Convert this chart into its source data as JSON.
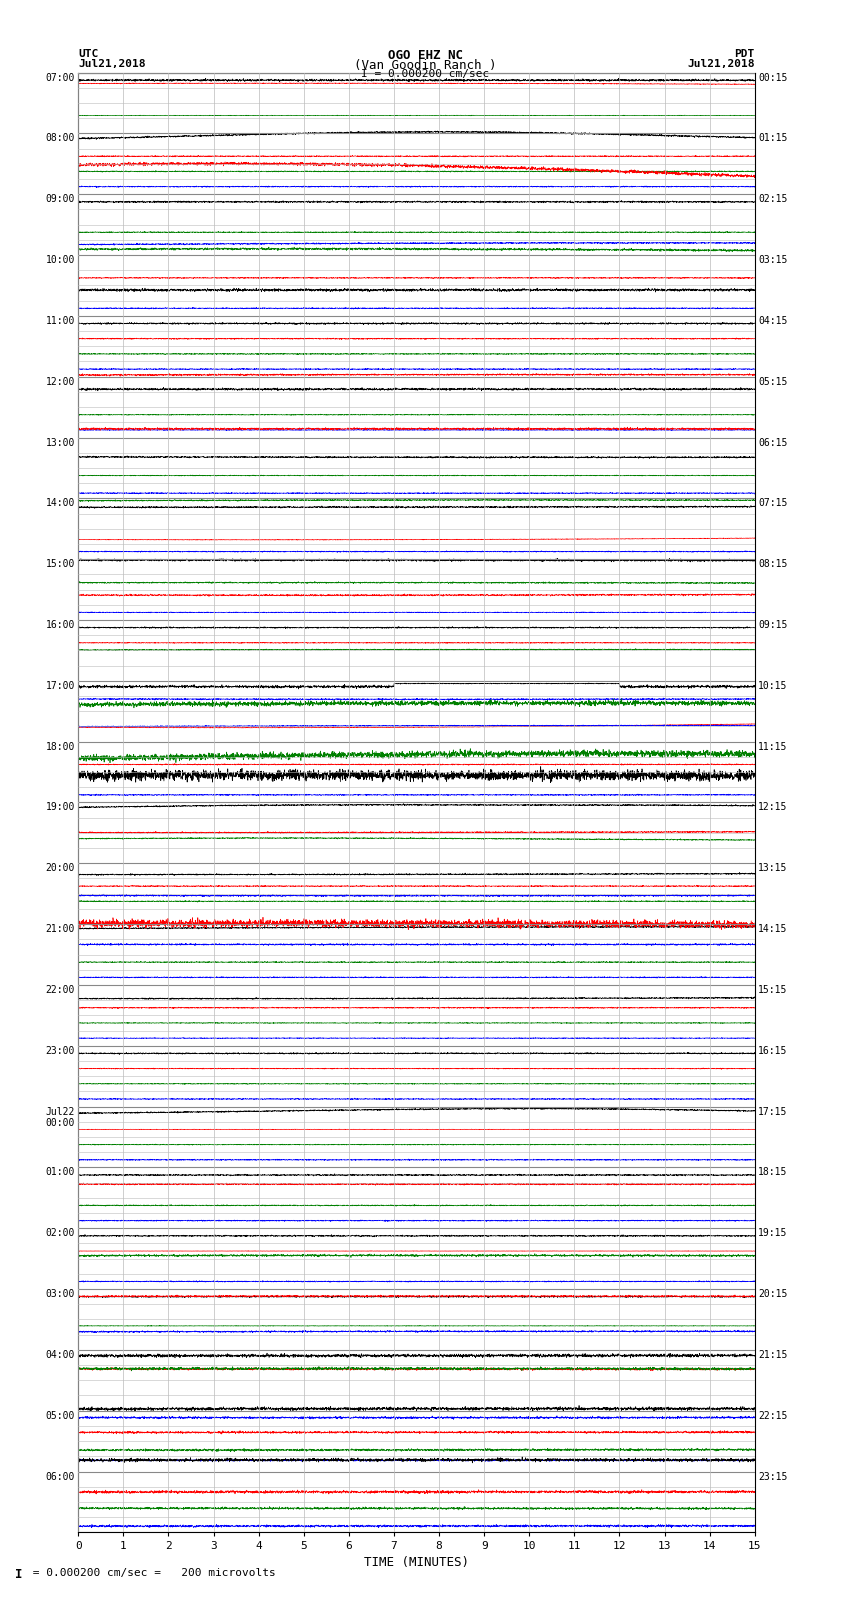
{
  "title_line1": "OGO EHZ NC",
  "title_line2": "(Van Goodin Ranch )",
  "title_line3": "I = 0.000200 cm/sec",
  "left_header_line1": "UTC",
  "left_header_line2": "Jul21,2018",
  "right_header_line1": "PDT",
  "right_header_line2": "Jul21,2018",
  "xlabel": "TIME (MINUTES)",
  "footer_a": "I",
  "footer_b": " = 0.000200 cm/sec =   200 microvolts",
  "utc_times": [
    "07:00",
    "08:00",
    "09:00",
    "10:00",
    "11:00",
    "12:00",
    "13:00",
    "14:00",
    "15:00",
    "16:00",
    "17:00",
    "18:00",
    "19:00",
    "20:00",
    "21:00",
    "22:00",
    "23:00",
    "Jul22\n00:00",
    "01:00",
    "02:00",
    "03:00",
    "04:00",
    "05:00",
    "06:00"
  ],
  "pdt_times": [
    "00:15",
    "01:15",
    "02:15",
    "03:15",
    "04:15",
    "05:15",
    "06:15",
    "07:15",
    "08:15",
    "09:15",
    "10:15",
    "11:15",
    "12:15",
    "13:15",
    "14:15",
    "15:15",
    "16:15",
    "17:15",
    "18:15",
    "19:15",
    "20:15",
    "21:15",
    "22:15",
    "23:15"
  ],
  "n_rows": 24,
  "n_sub": 4,
  "x_min": 0,
  "x_max": 15,
  "x_ticks": [
    0,
    1,
    2,
    3,
    4,
    5,
    6,
    7,
    8,
    9,
    10,
    11,
    12,
    13,
    14,
    15
  ],
  "bg_color": "#ffffff",
  "grid_color": "#888888",
  "sub_grid_color": "#bbbbbb",
  "trace_colors": [
    "black",
    "red",
    "green",
    "blue"
  ],
  "noise_base": 0.025,
  "event_amplitude": 0.15,
  "seed": 12345
}
